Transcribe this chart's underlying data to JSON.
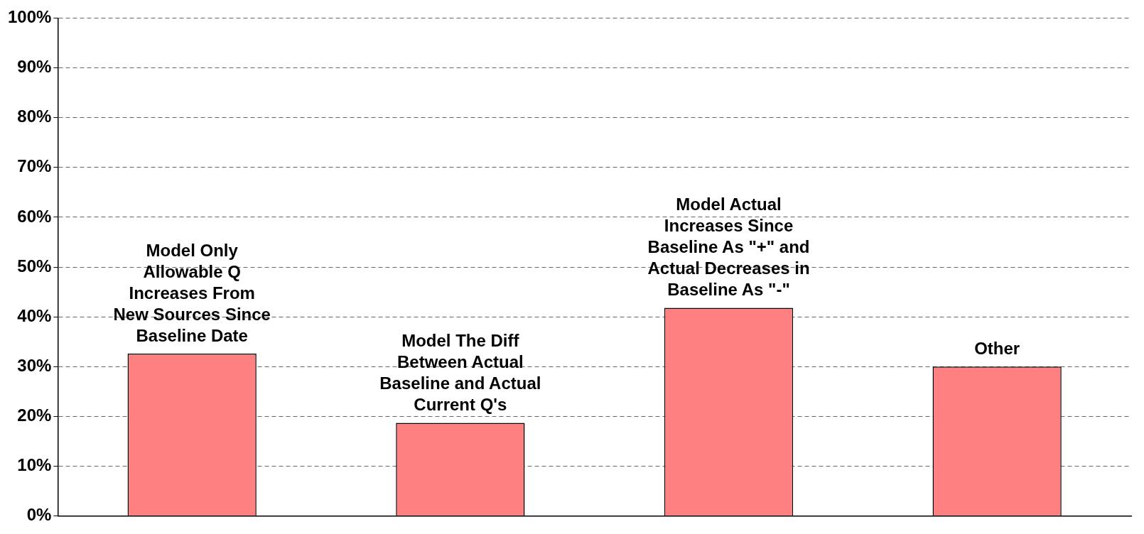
{
  "chart_data": {
    "type": "bar",
    "categories": [
      "Model Only Allowable Q Increases From New Sources Since Baseline Date",
      "Model The Diff Between Actual Baseline and Actual Current Q's",
      "Model Actual Increases Since Baseline As \"+\" and Actual Decreases in Baseline As \"-\"",
      "Other"
    ],
    "values": [
      32.6,
      18.7,
      41.8,
      30
    ],
    "color": "#ff8080",
    "ylim": [
      0,
      100
    ],
    "yticks": [
      {
        "value": 0,
        "label": "0%"
      },
      {
        "value": 10,
        "label": "10%"
      },
      {
        "value": 20,
        "label": "20%"
      },
      {
        "value": 30,
        "label": "30%"
      },
      {
        "value": 40,
        "label": "40%"
      },
      {
        "value": 50,
        "label": "50%"
      },
      {
        "value": 60,
        "label": "60%"
      },
      {
        "value": 70,
        "label": "70%"
      },
      {
        "value": 80,
        "label": "80%"
      },
      {
        "value": 90,
        "label": "90%"
      },
      {
        "value": 100,
        "label": "100%"
      }
    ],
    "grid": "y",
    "legend": false
  }
}
